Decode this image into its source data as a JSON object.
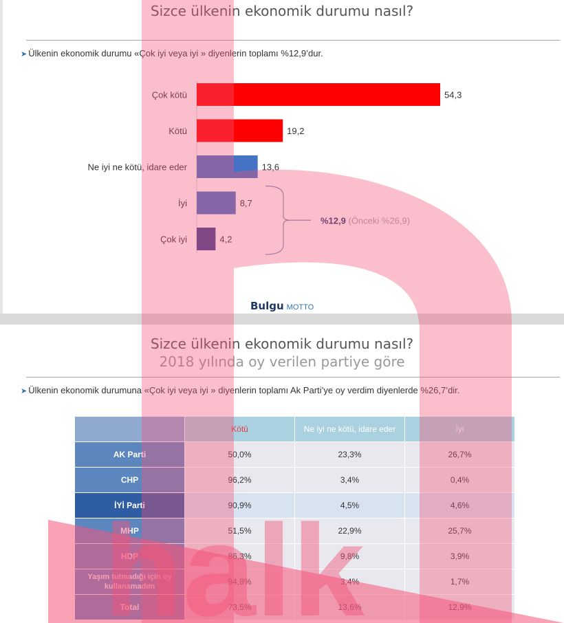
{
  "slide1": {
    "title": "Sizce ülkenin ekonomik durumu nasıl?",
    "bullet": "Ülkenin ekonomik durumu «Çok iyi veya iyi » diyenlerin toplamı %12,9’dur.",
    "bracket_label": "%12,9",
    "bracket_note": "(Önceki %26,9)",
    "logo_main": "Bulgu",
    "logo_second": "MOTTO"
  },
  "chart_data": {
    "type": "bar",
    "orientation": "horizontal",
    "categories": [
      "Çok kötü",
      "Kötü",
      "Ne iyi ne kötü, idare eder",
      "İyi",
      "Çok iyi"
    ],
    "values": [
      54.3,
      19.2,
      13.6,
      8.7,
      4.2
    ],
    "value_labels": [
      "54,3",
      "19,2",
      "13,6",
      "8,7",
      "4,2"
    ],
    "colors": [
      "#ff0000",
      "#ff0000",
      "#4472c4",
      "#4472c4",
      "#3a3f8f"
    ],
    "xlim": [
      0,
      60
    ]
  },
  "slide2": {
    "title": "Sizce ülkenin ekonomik durumu nasıl?",
    "subtitle": "2018 yılında oy verilen partiye göre",
    "bullet": "Ülkenin ekonomik durumuna «Çok iyi veya iyi » diyenlerin toplamı Ak Parti’ye oy verdim diyenlerde %26,7’dir.",
    "table": {
      "headers": [
        "",
        "Kötü",
        "Ne iyi ne kötü, idare eder",
        "İyi"
      ],
      "rows": [
        {
          "party": "AK Parti",
          "cells": [
            "50,0%",
            "23,3%",
            "26,7%"
          ]
        },
        {
          "party": "CHP",
          "cells": [
            "96,2%",
            "3,4%",
            "0,4%"
          ]
        },
        {
          "party": "İYİ Parti",
          "cells": [
            "90,9%",
            "4,5%",
            "4,6%"
          ]
        },
        {
          "party": "MHP",
          "cells": [
            "51,5%",
            "22,9%",
            "25,7%"
          ]
        },
        {
          "party": "HDP",
          "cells": [
            "86,3%",
            "9,8%",
            "3,9%"
          ]
        },
        {
          "party": "Yaşım tutmadığı için oy kullanamadım",
          "cells": [
            "94,8%",
            "3,4%",
            "1,7%"
          ]
        },
        {
          "party": "Total",
          "cells": [
            "73,5%",
            "13,6%",
            "12,9%"
          ]
        }
      ]
    }
  },
  "watermark": {
    "text": "halk",
    "color": "#f4557a"
  }
}
